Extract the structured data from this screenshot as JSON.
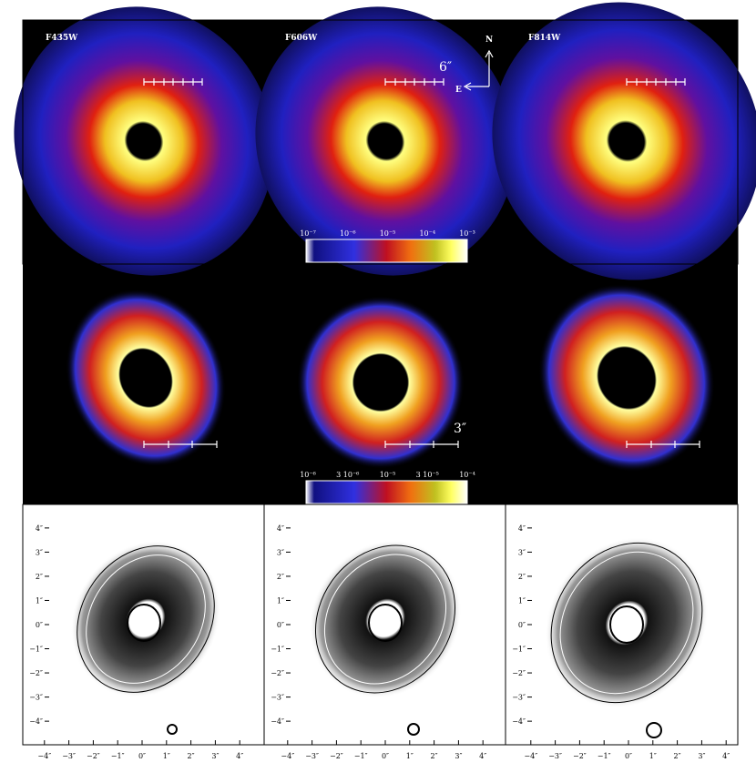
{
  "panels": [
    {
      "filter": "F435W"
    },
    {
      "filter": "F606W"
    },
    {
      "filter": "F814W"
    }
  ],
  "compass": {
    "north": "N",
    "east": "E"
  },
  "scale_bars": {
    "top": "6″",
    "middle": "3″"
  },
  "colorbars": [
    {
      "labels": [
        "10⁻⁷",
        "10⁻⁶",
        "10⁻⁵",
        "10⁻⁴",
        "10⁻³"
      ]
    },
    {
      "labels": [
        "10⁻⁶",
        "3 10⁻⁶",
        "10⁻⁵",
        "3 10⁻⁵",
        "10⁻⁴"
      ]
    }
  ],
  "axis_ticks": {
    "x": [
      "−4″",
      "−3″",
      "−2″",
      "−1″",
      "0″",
      "1″",
      "2″",
      "3″",
      "4″"
    ],
    "y": [
      "4″",
      "3″",
      "2″",
      "1″",
      "0″",
      "−1″",
      "−2″",
      "−3″",
      "−4″"
    ]
  }
}
